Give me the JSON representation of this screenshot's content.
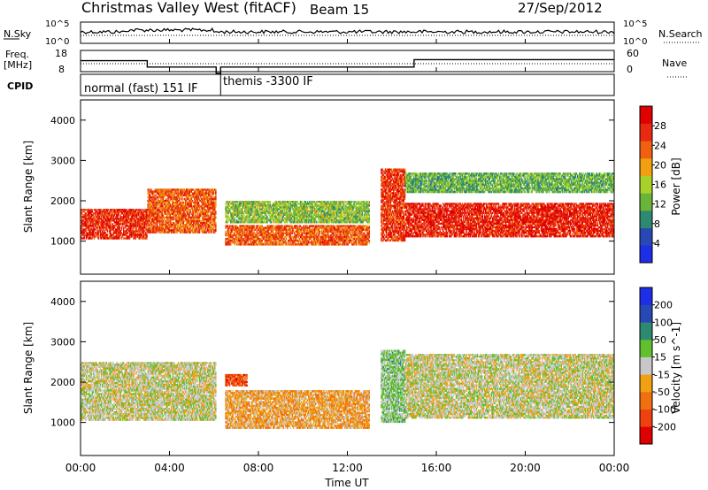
{
  "header": {
    "station_title": "Christmas Valley West (fitACF)",
    "beam_label": "Beam 15",
    "date": "27/Sep/2012"
  },
  "noise_panel": {
    "left_label": "N.Sky",
    "right_label": "N.Search",
    "left_ticks": [
      "10^5",
      "10^0"
    ],
    "right_ticks": [
      "10^5",
      "10^0"
    ]
  },
  "freq_panel": {
    "left_label": "Freq.",
    "left_unit": "[MHz]",
    "left_ticks": [
      "18",
      "8"
    ],
    "right_label": "Nave",
    "right_ticks": [
      "60",
      "0"
    ]
  },
  "cpid_panel": {
    "label": "CPID",
    "segments": [
      {
        "start_hour": 0,
        "end_hour": 6.3,
        "text": "normal (fast) 151 IF"
      },
      {
        "start_hour": 6.3,
        "end_hour": 24,
        "text": "themis -3300 IF"
      }
    ]
  },
  "x_axis": {
    "label": "Time UT",
    "range_hours": [
      0,
      24
    ],
    "ticks": [
      {
        "hour": 0,
        "label": "00:00"
      },
      {
        "hour": 4,
        "label": "04:00"
      },
      {
        "hour": 8,
        "label": "08:00"
      },
      {
        "hour": 12,
        "label": "12:00"
      },
      {
        "hour": 16,
        "label": "16:00"
      },
      {
        "hour": 20,
        "label": "20:00"
      },
      {
        "hour": 24,
        "label": "00:00"
      }
    ]
  },
  "chart_data": [
    {
      "type": "heatmap",
      "name": "power",
      "ylabel": "Slant Range [km]",
      "ylim": [
        180,
        4500
      ],
      "yticks": [
        1000,
        2000,
        3000,
        4000
      ],
      "colorbar": {
        "label": "Power [dB]",
        "range": [
          0,
          32
        ],
        "ticks": [
          4,
          8,
          12,
          16,
          20,
          24,
          28
        ],
        "colors": [
          "#1e2de6",
          "#2848b4",
          "#2d8a70",
          "#6ab43a",
          "#a8d22a",
          "#f0a010",
          "#f06010",
          "#e82a10",
          "#e00000"
        ]
      },
      "features": [
        {
          "t0": 0.0,
          "t1": 3.0,
          "r0": 1050,
          "r1": 1800,
          "value": 27
        },
        {
          "t0": 3.0,
          "t1": 6.1,
          "r0": 1200,
          "r1": 2300,
          "value": 24
        },
        {
          "t0": 6.5,
          "t1": 13.0,
          "r0": 900,
          "r1": 1400,
          "value": 24
        },
        {
          "t0": 6.5,
          "t1": 13.0,
          "r0": 1450,
          "r1": 2000,
          "value": 14
        },
        {
          "t0": 13.5,
          "t1": 14.6,
          "r0": 1000,
          "r1": 2800,
          "value": 26
        },
        {
          "t0": 14.6,
          "t1": 24.0,
          "r0": 1100,
          "r1": 1950,
          "value": 28
        },
        {
          "t0": 14.6,
          "t1": 24.0,
          "r0": 2200,
          "r1": 2700,
          "value": 12
        }
      ]
    },
    {
      "type": "heatmap",
      "name": "velocity",
      "ylabel": "Slant Range [km]",
      "ylim": [
        180,
        4500
      ],
      "yticks": [
        1000,
        2000,
        3000,
        4000
      ],
      "colorbar": {
        "label": "Velocity [m s^-1]",
        "range": [
          -250,
          250
        ],
        "ticks": [
          -200,
          -100,
          -50,
          -15,
          15,
          50,
          100,
          200
        ],
        "tick_labels": [
          "-200",
          "-100",
          "-50",
          "-15",
          "15",
          "50",
          "100",
          "200"
        ],
        "colors": [
          "#e00000",
          "#f04010",
          "#f07010",
          "#f0a010",
          "#c8c8c8",
          "#60c030",
          "#2d8a70",
          "#2848b4",
          "#1e2de6"
        ]
      },
      "features": [
        {
          "t0": 0.0,
          "t1": 6.1,
          "r0": 1050,
          "r1": 2500,
          "value": 0
        },
        {
          "t0": 6.5,
          "t1": 13.0,
          "r0": 850,
          "r1": 1800,
          "value": -60
        },
        {
          "t0": 6.5,
          "t1": 7.5,
          "r0": 1900,
          "r1": 2200,
          "value": -150
        },
        {
          "t0": 13.5,
          "t1": 14.6,
          "r0": 1000,
          "r1": 2800,
          "value": 40
        },
        {
          "t0": 14.6,
          "t1": 24.0,
          "r0": 1100,
          "r1": 2700,
          "value": 0
        }
      ]
    }
  ]
}
